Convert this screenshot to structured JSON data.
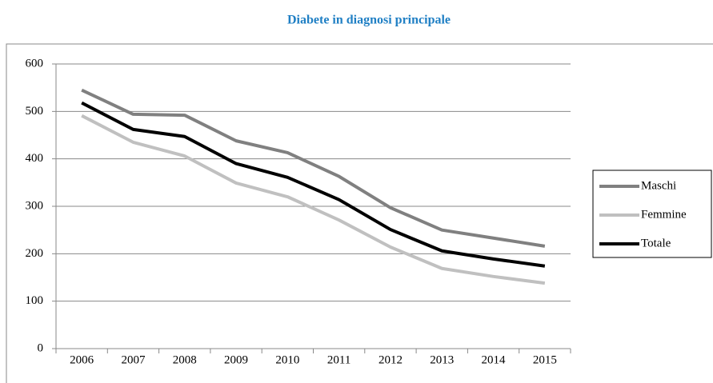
{
  "chart_data": {
    "type": "line",
    "title": "Diabete in diagnosi principale",
    "categories": [
      "2006",
      "2007",
      "2008",
      "2009",
      "2010",
      "2011",
      "2012",
      "2013",
      "2014",
      "2015"
    ],
    "series": [
      {
        "name": "Maschi",
        "color": "#808080",
        "values": [
          545,
          494,
          492,
          438,
          413,
          363,
          297,
          250,
          233,
          216
        ]
      },
      {
        "name": "Femmine",
        "color": "#c0c0c0",
        "values": [
          491,
          435,
          406,
          349,
          320,
          271,
          214,
          169,
          152,
          138
        ]
      },
      {
        "name": "Totale",
        "color": "#000000",
        "values": [
          518,
          462,
          447,
          390,
          361,
          314,
          251,
          206,
          189,
          174
        ]
      }
    ],
    "ylim": [
      0,
      600
    ],
    "yticks": [
      0,
      100,
      200,
      300,
      400,
      500,
      600
    ],
    "grid": true,
    "legend": "right"
  }
}
